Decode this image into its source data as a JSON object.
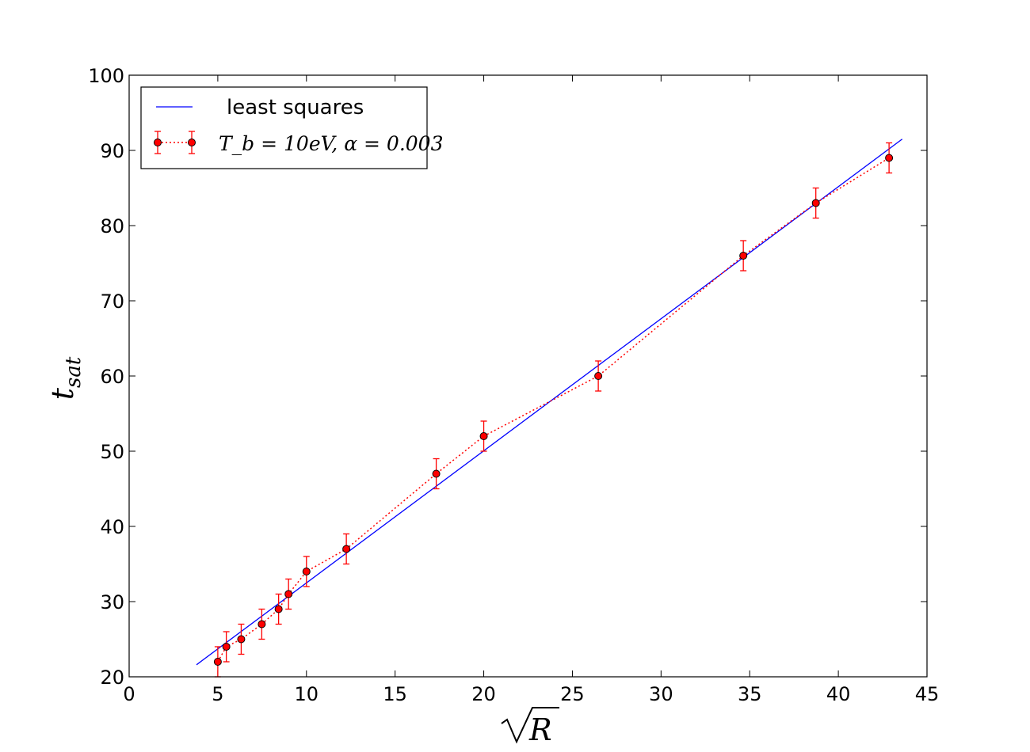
{
  "chart_data": {
    "type": "scatter",
    "xlabel": "√R",
    "ylabel": "t_sat",
    "xlim": [
      0,
      45
    ],
    "ylim": [
      20,
      100
    ],
    "x_ticks": [
      "0",
      "5",
      "10",
      "15",
      "20",
      "25",
      "30",
      "35",
      "40",
      "45"
    ],
    "y_ticks": [
      "20",
      "30",
      "40",
      "50",
      "60",
      "70",
      "80",
      "90",
      "100"
    ],
    "grid": false,
    "legend_position": "top-left",
    "series": [
      {
        "name": "least squares",
        "kind": "line",
        "color": "#0000ff",
        "x": [
          3.8,
          43.6
        ],
        "y": [
          21.6,
          91.5
        ]
      },
      {
        "name": "T_b = 10eV, α = 0.003",
        "kind": "errorbar",
        "color": "#ff0000",
        "marker_color": "#ff0000",
        "linestyle": "dotted",
        "x": [
          5.0,
          5.48,
          6.32,
          7.48,
          8.43,
          8.99,
          10.0,
          12.25,
          17.32,
          20.0,
          26.46,
          34.64,
          38.73,
          42.86
        ],
        "y": [
          22,
          24,
          25,
          27,
          29,
          31,
          34,
          37,
          47,
          52,
          60,
          76,
          83,
          89
        ],
        "yerr": [
          2,
          2,
          2,
          2,
          2,
          2,
          2,
          2,
          2,
          2,
          2,
          2,
          2,
          2
        ]
      }
    ]
  }
}
